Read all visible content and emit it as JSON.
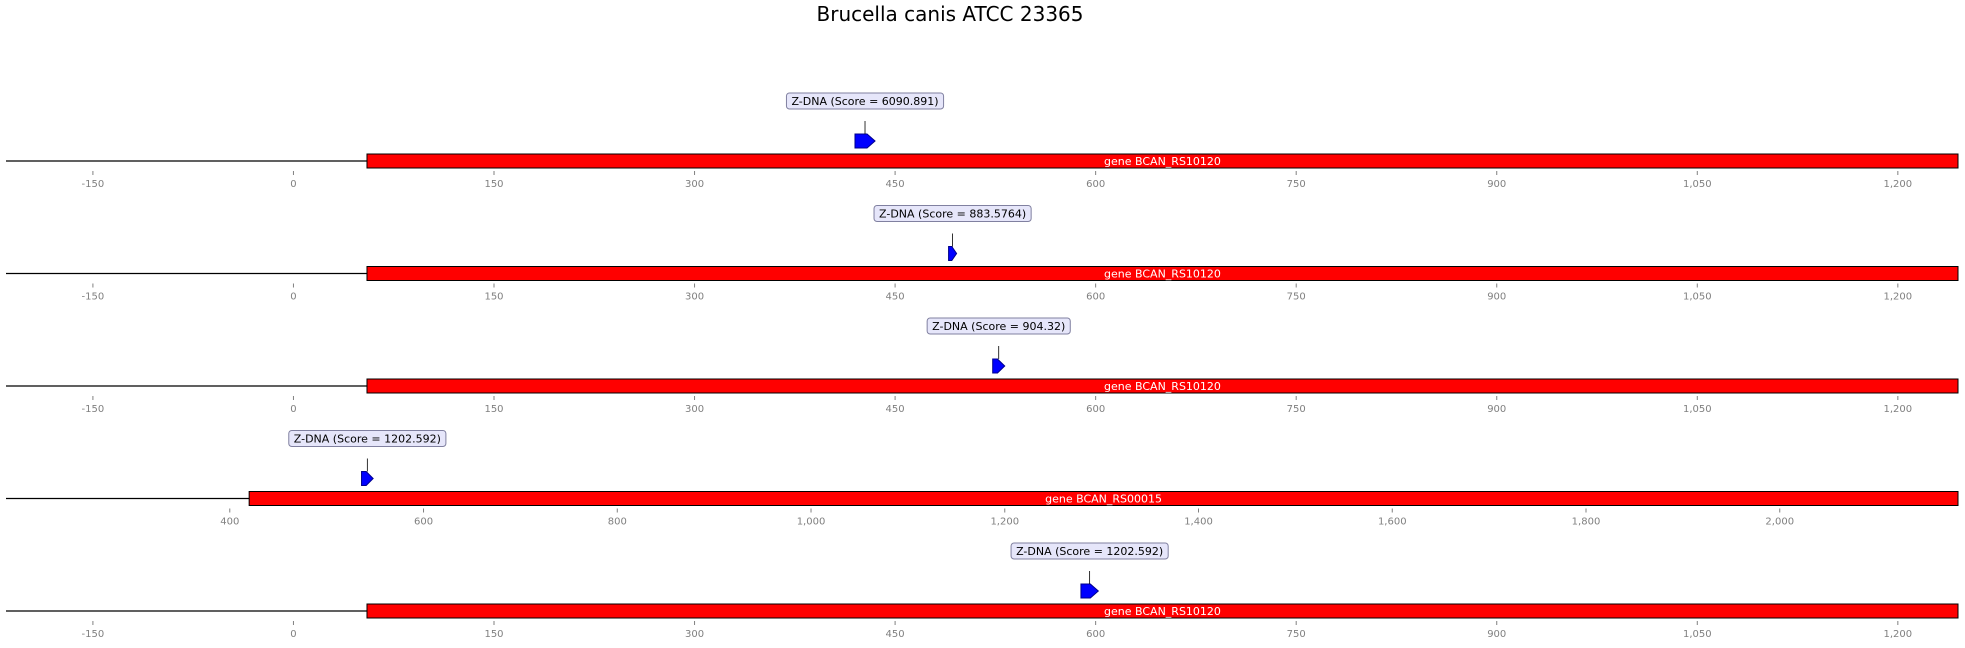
{
  "title": "Brucella canis ATCC 23365",
  "colors": {
    "gene": "#ff0000",
    "zdna": "#0000ff",
    "label_bg": "#e6e6fa",
    "label_border": "#8080a0",
    "tick": "#808080"
  },
  "tracks": [
    {
      "axis": {
        "min": -215,
        "max": 1245,
        "ticks": [
          -150,
          0,
          150,
          300,
          450,
          600,
          750,
          900,
          1050,
          1200
        ],
        "tick_labels": [
          "-150",
          "0",
          "150",
          "300",
          "450",
          "600",
          "750",
          "900",
          "1,050",
          "1,200"
        ]
      },
      "gene": {
        "label": "gene BCAN_RS10120",
        "start": 55,
        "end": 1245
      },
      "feature": {
        "label": "Z-DNA (Score = 6090.891)",
        "start": 420,
        "end": 435
      }
    },
    {
      "axis": {
        "min": -215,
        "max": 1245,
        "ticks": [
          -150,
          0,
          150,
          300,
          450,
          600,
          750,
          900,
          1050,
          1200
        ],
        "tick_labels": [
          "-150",
          "0",
          "150",
          "300",
          "450",
          "600",
          "750",
          "900",
          "1,050",
          "1,200"
        ]
      },
      "gene": {
        "label": "gene BCAN_RS10120",
        "start": 55,
        "end": 1245
      },
      "feature": {
        "label": "Z-DNA (Score = 883.5764)",
        "start": 490,
        "end": 496
      }
    },
    {
      "axis": {
        "min": -215,
        "max": 1245,
        "ticks": [
          -150,
          0,
          150,
          300,
          450,
          600,
          750,
          900,
          1050,
          1200
        ],
        "tick_labels": [
          "-150",
          "0",
          "150",
          "300",
          "450",
          "600",
          "750",
          "900",
          "1,050",
          "1,200"
        ]
      },
      "gene": {
        "label": "gene BCAN_RS10120",
        "start": 55,
        "end": 1245
      },
      "feature": {
        "label": "Z-DNA (Score = 904.32)",
        "start": 523,
        "end": 532
      }
    },
    {
      "axis": {
        "min": 169,
        "max": 2184,
        "ticks": [
          400,
          600,
          800,
          1000,
          1200,
          1400,
          1600,
          1800,
          2000
        ],
        "tick_labels": [
          "400",
          "600",
          "800",
          "1,000",
          "1,200",
          "1,400",
          "1,600",
          "1,800",
          "2,000"
        ]
      },
      "gene": {
        "label": "gene BCAN_RS00015",
        "start": 420,
        "end": 2184
      },
      "feature": {
        "label": "Z-DNA (Score = 1202.592)",
        "start": 536,
        "end": 548
      }
    },
    {
      "axis": {
        "min": -215,
        "max": 1245,
        "ticks": [
          -150,
          0,
          150,
          300,
          450,
          600,
          750,
          900,
          1050,
          1200
        ],
        "tick_labels": [
          "-150",
          "0",
          "150",
          "300",
          "450",
          "600",
          "750",
          "900",
          "1,050",
          "1,200"
        ]
      },
      "gene": {
        "label": "gene BCAN_RS10120",
        "start": 55,
        "end": 1245
      },
      "feature": {
        "label": "Z-DNA (Score = 1202.592)",
        "start": 589,
        "end": 602
      }
    }
  ]
}
